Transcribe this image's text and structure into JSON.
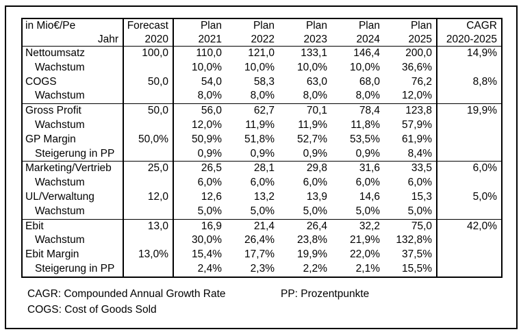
{
  "table": {
    "unit_label": "in Mio€/Pe",
    "row_axis_label": "Jahr",
    "columns": [
      {
        "line1": "Forecast",
        "line2": "2020",
        "sep_right": true
      },
      {
        "line1": "Plan",
        "line2": "2021",
        "sep_right": false
      },
      {
        "line1": "Plan",
        "line2": "2022",
        "sep_right": false
      },
      {
        "line1": "Plan",
        "line2": "2023",
        "sep_right": false
      },
      {
        "line1": "Plan",
        "line2": "2024",
        "sep_right": false
      },
      {
        "line1": "Plan",
        "line2": "2025",
        "sep_right": true
      },
      {
        "line1": "CAGR",
        "line2": "2020-2025",
        "sep_right": false
      }
    ],
    "rows": [
      {
        "label": "Nettoumsatz",
        "indent": false,
        "section_start": false,
        "values": [
          "100,0",
          "110,0",
          "121,0",
          "133,1",
          "146,4",
          "200,0",
          "14,9%"
        ]
      },
      {
        "label": "Wachstum",
        "indent": true,
        "section_start": false,
        "values": [
          "",
          "10,0%",
          "10,0%",
          "10,0%",
          "10,0%",
          "36,6%",
          ""
        ]
      },
      {
        "label": "COGS",
        "indent": false,
        "section_start": false,
        "values": [
          "50,0",
          "54,0",
          "58,3",
          "63,0",
          "68,0",
          "76,2",
          "8,8%"
        ]
      },
      {
        "label": "Wachstum",
        "indent": true,
        "section_start": false,
        "values": [
          "",
          "8,0%",
          "8,0%",
          "8,0%",
          "8,0%",
          "12,0%",
          ""
        ]
      },
      {
        "label": "Gross Profit",
        "indent": false,
        "section_start": true,
        "values": [
          "50,0",
          "56,0",
          "62,7",
          "70,1",
          "78,4",
          "123,8",
          "19,9%"
        ]
      },
      {
        "label": "Wachstum",
        "indent": true,
        "section_start": false,
        "values": [
          "",
          "12,0%",
          "11,9%",
          "11,9%",
          "11,8%",
          "57,9%",
          ""
        ]
      },
      {
        "label": "GP Margin",
        "indent": false,
        "section_start": false,
        "values": [
          "50,0%",
          "50,9%",
          "51,8%",
          "52,7%",
          "53,5%",
          "61,9%",
          ""
        ]
      },
      {
        "label": "Steigerung in PP",
        "indent": true,
        "section_start": false,
        "values": [
          "",
          "0,9%",
          "0,9%",
          "0,9%",
          "0,9%",
          "8,4%",
          ""
        ]
      },
      {
        "label": "Marketing/Vertrieb",
        "indent": false,
        "section_start": true,
        "values": [
          "25,0",
          "26,5",
          "28,1",
          "29,8",
          "31,6",
          "33,5",
          "6,0%"
        ]
      },
      {
        "label": "Wachstum",
        "indent": true,
        "section_start": false,
        "values": [
          "",
          "6,0%",
          "6,0%",
          "6,0%",
          "6,0%",
          "6,0%",
          ""
        ]
      },
      {
        "label": "UL/Verwaltung",
        "indent": false,
        "section_start": false,
        "values": [
          "12,0",
          "12,6",
          "13,2",
          "13,9",
          "14,6",
          "15,3",
          "5,0%"
        ]
      },
      {
        "label": "Wachstum",
        "indent": true,
        "section_start": false,
        "values": [
          "",
          "5,0%",
          "5,0%",
          "5,0%",
          "5,0%",
          "5,0%",
          ""
        ]
      },
      {
        "label": "Ebit",
        "indent": false,
        "section_start": true,
        "values": [
          "13,0",
          "16,9",
          "21,4",
          "26,4",
          "32,2",
          "75,0",
          "42,0%"
        ]
      },
      {
        "label": "Wachstum",
        "indent": true,
        "section_start": false,
        "values": [
          "",
          "30,0%",
          "26,4%",
          "23,8%",
          "21,9%",
          "132,8%",
          ""
        ]
      },
      {
        "label": "Ebit Margin",
        "indent": false,
        "section_start": false,
        "values": [
          "13,0%",
          "15,4%",
          "17,7%",
          "19,9%",
          "22,0%",
          "37,5%",
          ""
        ]
      },
      {
        "label": "Steigerung in PP",
        "indent": true,
        "section_start": false,
        "values": [
          "",
          "2,4%",
          "2,3%",
          "2,2%",
          "2,1%",
          "15,5%",
          ""
        ]
      }
    ]
  },
  "footnotes": {
    "cagr": "CAGR: Compounded Annual Growth Rate",
    "pp": "PP: Prozentpunkte",
    "cogs": "COGS: Cost of Goods Sold"
  },
  "colors": {
    "border": "#000000",
    "text": "#000000",
    "background": "#ffffff"
  }
}
